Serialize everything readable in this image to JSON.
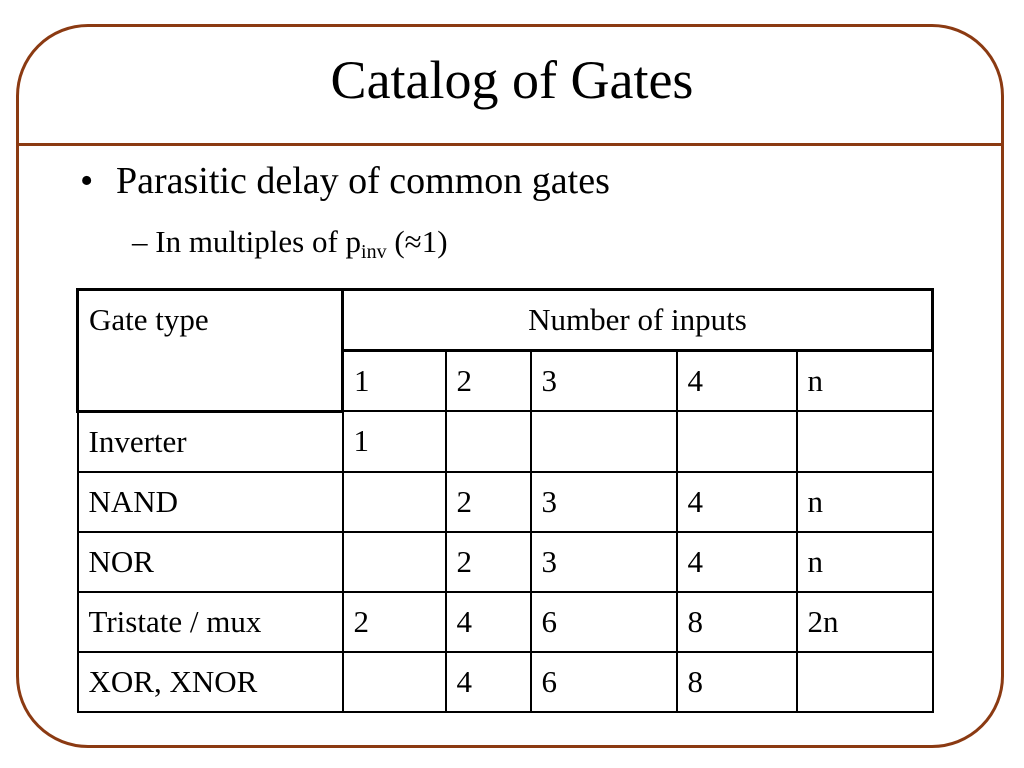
{
  "slide": {
    "title": "Catalog of Gates",
    "bullet": "Parasitic delay of common gates",
    "sub_bullet_prefix": "– In multiples of p",
    "sub_bullet_subscript": "inv",
    "sub_bullet_suffix": " (≈1)"
  },
  "table": {
    "header_gate_type": "Gate type",
    "header_inputs": "Number of inputs",
    "input_counts": [
      "1",
      "2",
      "3",
      "4",
      "n"
    ],
    "rows": [
      {
        "gate": "Inverter",
        "values": [
          "1",
          "",
          "",
          "",
          ""
        ]
      },
      {
        "gate": "NAND",
        "values": [
          "",
          "2",
          "3",
          "4",
          "n"
        ]
      },
      {
        "gate": "NOR",
        "values": [
          "",
          "2",
          "3",
          "4",
          "n"
        ]
      },
      {
        "gate": "Tristate / mux",
        "values": [
          "2",
          "4",
          "6",
          "8",
          "2n"
        ]
      },
      {
        "gate": "XOR, XNOR",
        "values": [
          "",
          "4",
          "6",
          "8",
          ""
        ]
      }
    ]
  },
  "colors": {
    "frame": "#8b3a12"
  }
}
